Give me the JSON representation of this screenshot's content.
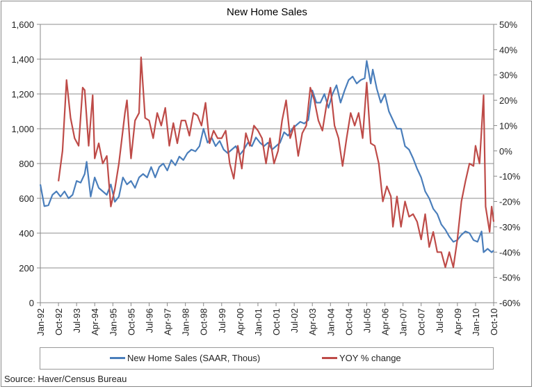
{
  "chart_data": {
    "type": "line",
    "title": "New Home Sales",
    "source": "Source: Haver/Census Bureau",
    "x_ticks": [
      "Jan-92",
      "Oct-92",
      "Jul-93",
      "Apr-94",
      "Jan-95",
      "Oct-95",
      "Jul-96",
      "Apr-97",
      "Jan-98",
      "Oct-98",
      "Jul-99",
      "Apr-00",
      "Jan-01",
      "Oct-01",
      "Jul-02",
      "Apr-03",
      "Jan-04",
      "Oct-04",
      "Jul-05",
      "Apr-06",
      "Jan-07",
      "Oct-07",
      "Jul-08",
      "Apr-09",
      "Jan-10",
      "Oct-10"
    ],
    "x_range": [
      "1992-01",
      "2010-10"
    ],
    "y_left": {
      "range": [
        0,
        1600
      ],
      "ticks": [
        "0",
        "200",
        "400",
        "600",
        "800",
        "1,000",
        "1,200",
        "1,400",
        "1,600"
      ]
    },
    "y_right": {
      "range": [
        -60,
        50
      ],
      "ticks": [
        "-60%",
        "-50%",
        "-40%",
        "-30%",
        "-20%",
        "-10%",
        "0%",
        "10%",
        "20%",
        "30%",
        "40%",
        "50%"
      ]
    },
    "grid": true,
    "legend_position": "bottom",
    "series": [
      {
        "name": "New Home Sales (SAAR, Thous)",
        "axis": "left",
        "color": "#4a7ebb",
        "points": [
          [
            "1992-01",
            680
          ],
          [
            "1992-03",
            555
          ],
          [
            "1992-05",
            560
          ],
          [
            "1992-07",
            620
          ],
          [
            "1992-09",
            640
          ],
          [
            "1992-11",
            610
          ],
          [
            "1993-01",
            640
          ],
          [
            "1993-03",
            600
          ],
          [
            "1993-05",
            620
          ],
          [
            "1993-07",
            700
          ],
          [
            "1993-09",
            690
          ],
          [
            "1993-11",
            740
          ],
          [
            "1993-12",
            810
          ],
          [
            "1994-02",
            610
          ],
          [
            "1994-04",
            720
          ],
          [
            "1994-06",
            660
          ],
          [
            "1994-08",
            640
          ],
          [
            "1994-10",
            620
          ],
          [
            "1994-12",
            680
          ],
          [
            "1995-02",
            580
          ],
          [
            "1995-04",
            610
          ],
          [
            "1995-06",
            720
          ],
          [
            "1995-08",
            680
          ],
          [
            "1995-10",
            700
          ],
          [
            "1995-12",
            660
          ],
          [
            "1996-02",
            720
          ],
          [
            "1996-04",
            740
          ],
          [
            "1996-06",
            720
          ],
          [
            "1996-08",
            780
          ],
          [
            "1996-10",
            720
          ],
          [
            "1996-12",
            780
          ],
          [
            "1997-02",
            800
          ],
          [
            "1997-04",
            760
          ],
          [
            "1997-06",
            820
          ],
          [
            "1997-08",
            790
          ],
          [
            "1997-10",
            840
          ],
          [
            "1997-12",
            820
          ],
          [
            "1998-02",
            860
          ],
          [
            "1998-04",
            880
          ],
          [
            "1998-06",
            870
          ],
          [
            "1998-08",
            900
          ],
          [
            "1998-10",
            1000
          ],
          [
            "1998-12",
            920
          ],
          [
            "1999-02",
            950
          ],
          [
            "1999-04",
            900
          ],
          [
            "1999-06",
            930
          ],
          [
            "1999-08",
            880
          ],
          [
            "1999-10",
            860
          ],
          [
            "1999-12",
            880
          ],
          [
            "2000-02",
            900
          ],
          [
            "2000-04",
            850
          ],
          [
            "2000-06",
            880
          ],
          [
            "2000-08",
            920
          ],
          [
            "2000-10",
            900
          ],
          [
            "2000-12",
            950
          ],
          [
            "2001-02",
            920
          ],
          [
            "2001-04",
            900
          ],
          [
            "2001-06",
            920
          ],
          [
            "2001-08",
            880
          ],
          [
            "2001-10",
            900
          ],
          [
            "2001-12",
            920
          ],
          [
            "2002-02",
            980
          ],
          [
            "2002-04",
            960
          ],
          [
            "2002-06",
            1000
          ],
          [
            "2002-08",
            1020
          ],
          [
            "2002-10",
            1040
          ],
          [
            "2002-12",
            1030
          ],
          [
            "2003-02",
            1050
          ],
          [
            "2003-04",
            1220
          ],
          [
            "2003-06",
            1150
          ],
          [
            "2003-08",
            1150
          ],
          [
            "2003-10",
            1200
          ],
          [
            "2003-12",
            1120
          ],
          [
            "2004-02",
            1200
          ],
          [
            "2004-04",
            1250
          ],
          [
            "2004-06",
            1150
          ],
          [
            "2004-08",
            1220
          ],
          [
            "2004-10",
            1280
          ],
          [
            "2004-12",
            1300
          ],
          [
            "2005-02",
            1260
          ],
          [
            "2005-04",
            1280
          ],
          [
            "2005-06",
            1290
          ],
          [
            "2005-07",
            1390
          ],
          [
            "2005-09",
            1260
          ],
          [
            "2005-10",
            1340
          ],
          [
            "2005-12",
            1230
          ],
          [
            "2006-02",
            1150
          ],
          [
            "2006-04",
            1200
          ],
          [
            "2006-06",
            1100
          ],
          [
            "2006-08",
            1050
          ],
          [
            "2006-10",
            1000
          ],
          [
            "2006-12",
            1000
          ],
          [
            "2007-02",
            900
          ],
          [
            "2007-04",
            880
          ],
          [
            "2007-06",
            830
          ],
          [
            "2007-08",
            770
          ],
          [
            "2007-10",
            720
          ],
          [
            "2007-12",
            640
          ],
          [
            "2008-02",
            600
          ],
          [
            "2008-04",
            540
          ],
          [
            "2008-06",
            510
          ],
          [
            "2008-08",
            450
          ],
          [
            "2008-10",
            420
          ],
          [
            "2008-12",
            380
          ],
          [
            "2009-02",
            350
          ],
          [
            "2009-04",
            360
          ],
          [
            "2009-06",
            390
          ],
          [
            "2009-08",
            410
          ],
          [
            "2009-10",
            400
          ],
          [
            "2009-12",
            360
          ],
          [
            "2010-02",
            350
          ],
          [
            "2010-04",
            410
          ],
          [
            "2010-05",
            290
          ],
          [
            "2010-07",
            310
          ],
          [
            "2010-09",
            290
          ],
          [
            "2010-10",
            300
          ]
        ]
      },
      {
        "name": "YOY % change",
        "axis": "right",
        "color": "#be4b48",
        "points": [
          [
            "1992-10",
            -12
          ],
          [
            "1992-12",
            0
          ],
          [
            "1993-02",
            28
          ],
          [
            "1993-04",
            13
          ],
          [
            "1993-06",
            5
          ],
          [
            "1993-08",
            2
          ],
          [
            "1993-10",
            25
          ],
          [
            "1993-11",
            24
          ],
          [
            "1994-01",
            2
          ],
          [
            "1994-03",
            22
          ],
          [
            "1994-04",
            -3
          ],
          [
            "1994-06",
            3
          ],
          [
            "1994-08",
            -5
          ],
          [
            "1994-10",
            -2
          ],
          [
            "1994-12",
            -22
          ],
          [
            "1995-02",
            -15
          ],
          [
            "1995-04",
            -5
          ],
          [
            "1995-07",
            15
          ],
          [
            "1995-08",
            20
          ],
          [
            "1995-10",
            -3
          ],
          [
            "1995-12",
            12
          ],
          [
            "1996-02",
            15
          ],
          [
            "1996-03",
            37
          ],
          [
            "1996-05",
            13
          ],
          [
            "1996-07",
            12
          ],
          [
            "1996-09",
            5
          ],
          [
            "1996-11",
            15
          ],
          [
            "1997-01",
            10
          ],
          [
            "1997-03",
            17
          ],
          [
            "1997-05",
            2
          ],
          [
            "1997-07",
            11
          ],
          [
            "1997-09",
            3
          ],
          [
            "1997-11",
            12
          ],
          [
            "1998-01",
            12
          ],
          [
            "1998-03",
            6
          ],
          [
            "1998-05",
            15
          ],
          [
            "1998-07",
            14
          ],
          [
            "1998-09",
            10
          ],
          [
            "1998-11",
            19
          ],
          [
            "1999-01",
            3
          ],
          [
            "1999-03",
            8
          ],
          [
            "1999-05",
            5
          ],
          [
            "1999-07",
            5
          ],
          [
            "1999-09",
            8
          ],
          [
            "1999-11",
            -5
          ],
          [
            "2000-01",
            -11
          ],
          [
            "2000-03",
            2
          ],
          [
            "2000-05",
            -7
          ],
          [
            "2000-07",
            7
          ],
          [
            "2000-09",
            2
          ],
          [
            "2000-11",
            10
          ],
          [
            "2001-01",
            8
          ],
          [
            "2001-03",
            5
          ],
          [
            "2001-05",
            -5
          ],
          [
            "2001-07",
            5
          ],
          [
            "2001-09",
            -5
          ],
          [
            "2001-11",
            0
          ],
          [
            "2002-01",
            12
          ],
          [
            "2002-03",
            20
          ],
          [
            "2002-05",
            5
          ],
          [
            "2002-07",
            10
          ],
          [
            "2002-09",
            -2
          ],
          [
            "2002-11",
            7
          ],
          [
            "2003-01",
            10
          ],
          [
            "2003-03",
            25
          ],
          [
            "2003-05",
            20
          ],
          [
            "2003-07",
            12
          ],
          [
            "2003-09",
            8
          ],
          [
            "2003-11",
            18
          ],
          [
            "2004-01",
            25
          ],
          [
            "2004-03",
            10
          ],
          [
            "2004-05",
            5
          ],
          [
            "2004-07",
            -6
          ],
          [
            "2004-09",
            5
          ],
          [
            "2004-11",
            15
          ],
          [
            "2005-01",
            10
          ],
          [
            "2005-03",
            15
          ],
          [
            "2005-05",
            5
          ],
          [
            "2005-07",
            27
          ],
          [
            "2005-09",
            3
          ],
          [
            "2005-11",
            2
          ],
          [
            "2006-01",
            -5
          ],
          [
            "2006-03",
            -20
          ],
          [
            "2006-05",
            -14
          ],
          [
            "2006-07",
            -18
          ],
          [
            "2006-08",
            -30
          ],
          [
            "2006-10",
            -18
          ],
          [
            "2006-12",
            -30
          ],
          [
            "2007-02",
            -20
          ],
          [
            "2007-04",
            -26
          ],
          [
            "2007-06",
            -25
          ],
          [
            "2007-08",
            -28
          ],
          [
            "2007-10",
            -35
          ],
          [
            "2007-12",
            -25
          ],
          [
            "2008-02",
            -38
          ],
          [
            "2008-04",
            -32
          ],
          [
            "2008-06",
            -40
          ],
          [
            "2008-08",
            -40
          ],
          [
            "2008-10",
            -46
          ],
          [
            "2008-12",
            -40
          ],
          [
            "2009-02",
            -46
          ],
          [
            "2009-04",
            -35
          ],
          [
            "2009-06",
            -20
          ],
          [
            "2009-08",
            -12
          ],
          [
            "2009-10",
            -5
          ],
          [
            "2009-12",
            -6
          ],
          [
            "2010-01",
            2
          ],
          [
            "2010-03",
            -5
          ],
          [
            "2010-05",
            22
          ],
          [
            "2010-06",
            -22
          ],
          [
            "2010-08",
            -32
          ],
          [
            "2010-09",
            -22
          ],
          [
            "2010-10",
            -28
          ]
        ]
      }
    ]
  }
}
